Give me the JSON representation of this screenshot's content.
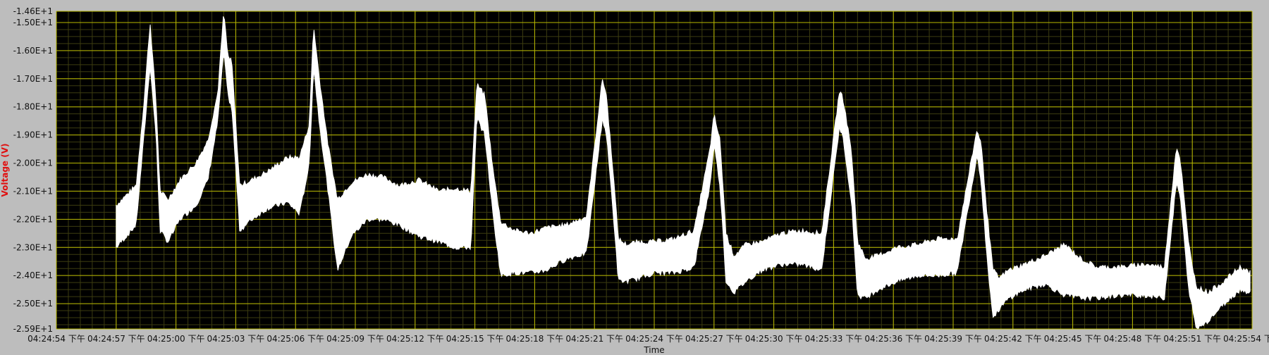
{
  "chart_data": {
    "type": "line",
    "title": "",
    "xlabel": "Time",
    "ylabel": "Voltage (V)",
    "colors": {
      "background": "#bdbdbd",
      "plot": "#000000",
      "grid_major": "#b8b800",
      "grid_minor": "#3c3c10",
      "trace": "#ffffff",
      "ylabel": "#e01010"
    },
    "grid": true,
    "legend": "none",
    "ylim": [
      -25.9,
      -14.6
    ],
    "xlim": [
      "04:24:54",
      "04:25:54"
    ],
    "y_ticks": [
      {
        "value": -14.6,
        "label": "-1.46E+1"
      },
      {
        "value": -15.0,
        "label": "-1.50E+1"
      },
      {
        "value": -16.0,
        "label": "-1.60E+1"
      },
      {
        "value": -17.0,
        "label": "-1.70E+1"
      },
      {
        "value": -18.0,
        "label": "-1.80E+1"
      },
      {
        "value": -19.0,
        "label": "-1.90E+1"
      },
      {
        "value": -20.0,
        "label": "-2.00E+1"
      },
      {
        "value": -21.0,
        "label": "-2.10E+1"
      },
      {
        "value": -22.0,
        "label": "-2.20E+1"
      },
      {
        "value": -23.0,
        "label": "-2.30E+1"
      },
      {
        "value": -24.0,
        "label": "-2.40E+1"
      },
      {
        "value": -25.0,
        "label": "-2.50E+1"
      },
      {
        "value": -25.9,
        "label": "-2.59E+1"
      }
    ],
    "x_ticks": [
      {
        "value": "04:24:54",
        "label": "04:24:54 下午"
      },
      {
        "value": "04:24:57",
        "label": "04:24:57 下午"
      },
      {
        "value": "04:25:00",
        "label": "04:25:00 下午"
      },
      {
        "value": "04:25:03",
        "label": "04:25:03 下午"
      },
      {
        "value": "04:25:06",
        "label": "04:25:06 下午"
      },
      {
        "value": "04:25:09",
        "label": "04:25:09 下午"
      },
      {
        "value": "04:25:12",
        "label": "04:25:12 下午"
      },
      {
        "value": "04:25:15",
        "label": "04:25:15 下午"
      },
      {
        "value": "04:25:18",
        "label": "04:25:18 下午"
      },
      {
        "value": "04:25:21",
        "label": "04:25:21 下午"
      },
      {
        "value": "04:25:24",
        "label": "04:25:24 下午"
      },
      {
        "value": "04:25:27",
        "label": "04:25:27 下午"
      },
      {
        "value": "04:25:30",
        "label": "04:25:30 下午"
      },
      {
        "value": "04:25:33",
        "label": "04:25:33 下午"
      },
      {
        "value": "04:25:36",
        "label": "04:25:36 下午"
      },
      {
        "value": "04:25:39",
        "label": "04:25:39 下午"
      },
      {
        "value": "04:25:42",
        "label": "04:25:42 下午"
      },
      {
        "value": "04:25:45",
        "label": "04:25:45 下午"
      },
      {
        "value": "04:25:48",
        "label": "04:25:48 下午"
      },
      {
        "value": "04:25:51",
        "label": "04:25:51 下午"
      },
      {
        "value": "04:25:54",
        "label": "04:25:54 下午"
      }
    ],
    "series": [
      {
        "x": [
          "04:24:57.0",
          "04:24:58.0",
          "04:24:58.4",
          "04:24:58.7",
          "04:24:59.0",
          "04:24:59.2",
          "04:24:59.6",
          "04:25:00.2",
          "04:25:01.0",
          "04:25:01.6",
          "04:25:02.1",
          "04:25:02.4",
          "04:25:02.6",
          "04:25:02.8",
          "04:25:03.2",
          "04:25:03.8",
          "04:25:04.6",
          "04:25:05.6",
          "04:25:06.2",
          "04:25:06.7",
          "04:25:06.9",
          "04:25:07.2",
          "04:25:07.6",
          "04:25:08.1",
          "04:25:08.8",
          "04:25:09.6",
          "04:25:10.4",
          "04:25:11.2",
          "04:25:12.2",
          "04:25:13.2",
          "04:25:14.0",
          "04:25:14.8",
          "04:25:15.1",
          "04:25:15.5",
          "04:25:15.9",
          "04:25:16.3",
          "04:25:17.0",
          "04:25:17.8",
          "04:25:18.6",
          "04:25:19.6",
          "04:25:20.6",
          "04:25:21.4",
          "04:25:21.6",
          "04:25:21.9",
          "04:25:22.2",
          "04:25:22.6",
          "04:25:23.2",
          "04:25:24.0",
          "04:25:25.0",
          "04:25:26.0",
          "04:25:26.8",
          "04:25:27.0",
          "04:25:27.3",
          "04:25:27.6",
          "04:25:28.0",
          "04:25:28.6",
          "04:25:29.4",
          "04:25:30.4",
          "04:25:31.4",
          "04:25:32.4",
          "04:25:33.3",
          "04:25:33.5",
          "04:25:33.9",
          "04:25:34.2",
          "04:25:34.6",
          "04:25:35.2",
          "04:25:36.2",
          "04:25:37.2",
          "04:25:38.2",
          "04:25:39.2",
          "04:25:40.2",
          "04:25:40.4",
          "04:25:40.7",
          "04:25:41.0",
          "04:25:41.3",
          "04:25:41.8",
          "04:25:42.6",
          "04:25:43.6",
          "04:25:44.6",
          "04:25:45.4",
          "04:25:46.2",
          "04:25:47.4",
          "04:25:48.6",
          "04:25:49.6",
          "04:25:50.2",
          "04:25:50.4",
          "04:25:50.8",
          "04:25:51.2",
          "04:25:51.8",
          "04:25:52.6",
          "04:25:53.4",
          "04:25:53.9"
        ],
        "upper": [
          -21.5,
          -20.8,
          -17.8,
          -15.0,
          -17.8,
          -21.0,
          -21.3,
          -20.6,
          -20.0,
          -19.2,
          -17.5,
          -14.6,
          -16.2,
          -16.4,
          -20.8,
          -20.6,
          -20.3,
          -19.8,
          -19.8,
          -18.6,
          -15.1,
          -17.0,
          -19.2,
          -21.3,
          -20.7,
          -20.4,
          -20.5,
          -20.8,
          -20.6,
          -21.0,
          -20.9,
          -21.0,
          -17.2,
          -17.6,
          -20.2,
          -22.1,
          -22.4,
          -22.5,
          -22.3,
          -22.2,
          -21.9,
          -17.0,
          -17.6,
          -20.0,
          -22.7,
          -22.9,
          -22.8,
          -22.8,
          -22.7,
          -22.4,
          -19.5,
          -18.3,
          -19.2,
          -22.5,
          -23.3,
          -22.9,
          -22.8,
          -22.5,
          -22.4,
          -22.5,
          -17.4,
          -17.8,
          -19.6,
          -22.8,
          -23.4,
          -23.3,
          -23.0,
          -22.9,
          -22.7,
          -22.7,
          -18.8,
          -19.3,
          -21.8,
          -23.8,
          -24.1,
          -23.8,
          -23.6,
          -23.3,
          -22.9,
          -23.4,
          -23.7,
          -23.7,
          -23.6,
          -23.7,
          -19.4,
          -19.9,
          -22.8,
          -24.4,
          -24.6,
          -24.2,
          -23.7,
          -23.9
        ],
        "lower": [
          -23.0,
          -22.2,
          -19.0,
          -16.5,
          -19.0,
          -22.4,
          -22.8,
          -22.0,
          -21.5,
          -20.6,
          -18.5,
          -16.0,
          -17.6,
          -18.0,
          -22.4,
          -22.0,
          -21.6,
          -21.4,
          -21.8,
          -20.0,
          -16.5,
          -18.6,
          -20.8,
          -23.8,
          -22.6,
          -22.0,
          -22.0,
          -22.2,
          -22.6,
          -22.8,
          -23.0,
          -23.0,
          -18.4,
          -19.0,
          -21.8,
          -24.0,
          -23.9,
          -23.9,
          -23.8,
          -23.4,
          -23.2,
          -18.4,
          -19.0,
          -21.4,
          -24.2,
          -24.2,
          -24.1,
          -23.9,
          -23.9,
          -23.7,
          -20.8,
          -19.3,
          -20.8,
          -24.2,
          -24.6,
          -24.2,
          -23.8,
          -23.6,
          -23.6,
          -23.8,
          -18.7,
          -19.2,
          -21.4,
          -24.7,
          -24.8,
          -24.5,
          -24.2,
          -24.0,
          -24.0,
          -23.9,
          -19.7,
          -20.6,
          -23.4,
          -25.5,
          -25.2,
          -24.8,
          -24.5,
          -24.3,
          -24.7,
          -24.8,
          -24.8,
          -24.7,
          -24.7,
          -24.8,
          -20.7,
          -21.2,
          -24.4,
          -25.9,
          -25.6,
          -25.0,
          -24.5,
          -24.6
        ]
      }
    ]
  }
}
